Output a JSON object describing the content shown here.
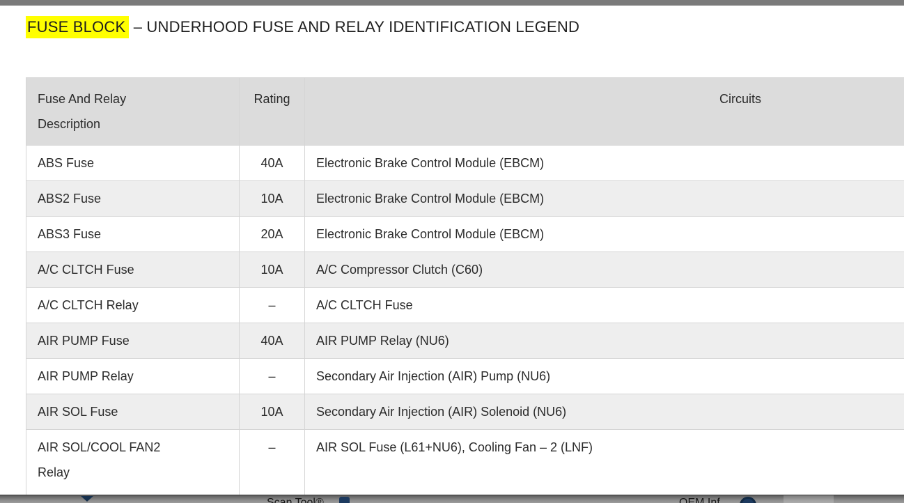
{
  "title": {
    "highlight": "FUSE BLOCK",
    "rest": "– UNDERHOOD FUSE AND RELAY IDENTIFICATION LEGEND"
  },
  "table": {
    "headers": [
      "Fuse And Relay Description",
      "Rating",
      "Circuits"
    ],
    "rows": [
      {
        "description": "ABS Fuse",
        "rating": "40A",
        "circuits": "Electronic Brake Control Module (EBCM)"
      },
      {
        "description": "ABS2 Fuse",
        "rating": "10A",
        "circuits": "Electronic Brake Control Module (EBCM)"
      },
      {
        "description": "ABS3 Fuse",
        "rating": "20A",
        "circuits": "Electronic Brake Control Module (EBCM)"
      },
      {
        "description": "A/C CLTCH Fuse",
        "rating": "10A",
        "circuits": "A/C Compressor Clutch (C60)"
      },
      {
        "description": "A/C CLTCH Relay",
        "rating": "–",
        "circuits": "A/C CLTCH Fuse"
      },
      {
        "description": "AIR PUMP Fuse",
        "rating": "40A",
        "circuits": "AIR PUMP Relay (NU6)"
      },
      {
        "description": "AIR PUMP Relay",
        "rating": "–",
        "circuits": "Secondary Air Injection (AIR) Pump (NU6)"
      },
      {
        "description": "AIR SOL Fuse",
        "rating": "10A",
        "circuits": "Secondary Air Injection (AIR) Solenoid (NU6)"
      },
      {
        "description": "AIR SOL/COOL FAN2 Relay",
        "rating": "–",
        "circuits": "AIR SOL Fuse (L61+NU6), Cooling Fan – 2 (LNF)"
      }
    ]
  },
  "bottom_bar": {
    "handle_icon": "chevron-down-icon",
    "items": [
      {
        "label": "Scan Tool®",
        "icon": "scan-tool-icon"
      },
      {
        "label": "OEM Inf",
        "icon": "oem-info-icon"
      }
    ]
  },
  "colors": {
    "highlight": "#ffff00",
    "header_bg": "#dcdcdc",
    "alt_row_bg": "#eeeeee",
    "top_bar": "#7a7a7a",
    "toolbar_icon_navy": "#1d3a5f",
    "text": "#2b2b2b"
  }
}
